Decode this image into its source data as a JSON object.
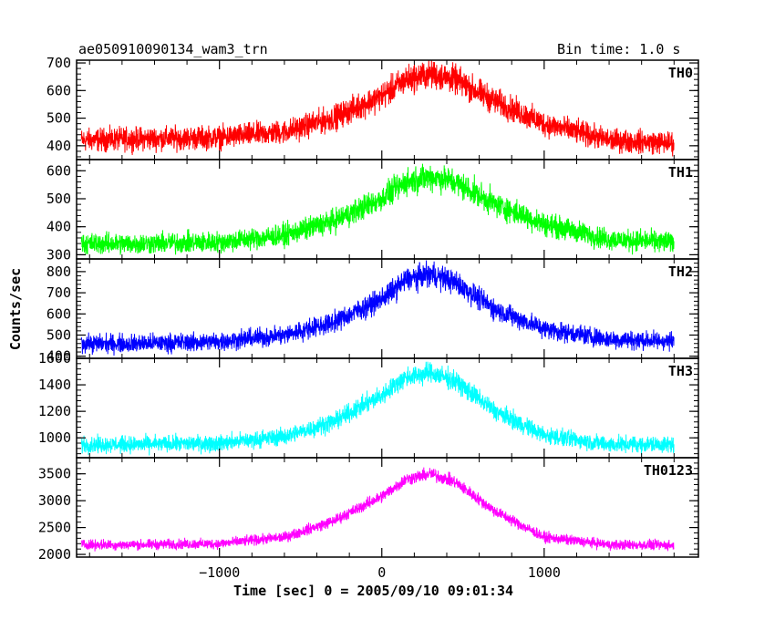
{
  "title": "ae050910090134_wam3_trn",
  "bin_time": "Bin time: 1.0 s",
  "chart_data": {
    "type": "line",
    "xlabel": "Time [sec] 0 = 2005/09/10 09:01:34",
    "ylabel": "Counts/sec",
    "xlim": [
      -1880,
      1950
    ],
    "x_ticks": [
      -1000,
      0,
      1000
    ],
    "x_tick_labels": [
      "−1000",
      "0",
      "1000"
    ],
    "panels": [
      {
        "name": "TH0",
        "color": "#ff0000",
        "ylim": [
          350,
          710
        ],
        "yticks": [
          400,
          500,
          600,
          700
        ],
        "x": [
          -1850,
          -1500,
          -1000,
          -600,
          -300,
          0,
          150,
          300,
          450,
          700,
          1000,
          1400,
          1800
        ],
        "y": [
          420,
          425,
          430,
          450,
          500,
          580,
          640,
          660,
          640,
          560,
          480,
          420,
          410
        ]
      },
      {
        "name": "TH1",
        "color": "#00ff00",
        "ylim": [
          285,
          640
        ],
        "yticks": [
          300,
          400,
          500,
          600
        ],
        "x": [
          -1850,
          -1500,
          -1000,
          -600,
          -300,
          0,
          150,
          300,
          450,
          700,
          1000,
          1400,
          1800
        ],
        "y": [
          340,
          340,
          345,
          370,
          420,
          500,
          560,
          580,
          560,
          480,
          410,
          355,
          345
        ]
      },
      {
        "name": "TH2",
        "color": "#0000ff",
        "ylim": [
          390,
          860
        ],
        "yticks": [
          400,
          500,
          600,
          700,
          800
        ],
        "x": [
          -1850,
          -1500,
          -1000,
          -600,
          -300,
          0,
          150,
          300,
          450,
          700,
          1000,
          1400,
          1800
        ],
        "y": [
          460,
          460,
          470,
          500,
          560,
          670,
          760,
          790,
          750,
          620,
          530,
          480,
          470
        ]
      },
      {
        "name": "TH3",
        "color": "#00ffff",
        "ylim": [
          850,
          1600
        ],
        "yticks": [
          1000,
          1200,
          1400,
          1600
        ],
        "x": [
          -1850,
          -1500,
          -1000,
          -600,
          -300,
          0,
          150,
          300,
          450,
          700,
          1000,
          1400,
          1800
        ],
        "y": [
          950,
          950,
          960,
          1010,
          1120,
          1320,
          1460,
          1490,
          1430,
          1200,
          1020,
          950,
          950
        ]
      },
      {
        "name": "TH0123",
        "color": "#ff00ff",
        "ylim": [
          1950,
          3800
        ],
        "yticks": [
          2000,
          2500,
          3000,
          3500
        ],
        "x": [
          -1850,
          -1500,
          -1000,
          -600,
          -300,
          0,
          150,
          300,
          450,
          700,
          1000,
          1400,
          1800
        ],
        "y": [
          2180,
          2180,
          2200,
          2320,
          2620,
          3080,
          3400,
          3500,
          3350,
          2800,
          2320,
          2180,
          2170
        ]
      }
    ]
  }
}
